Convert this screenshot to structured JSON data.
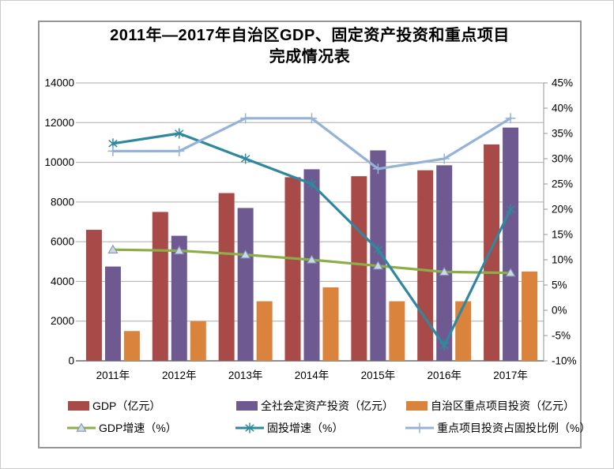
{
  "chart_data": {
    "type": "bar+line",
    "title": "2011年—2017年自治区GDP、固定资产投资和重点项目完成情况表",
    "title_lines": [
      "2011年—2017年自治区GDP、固定资产投资和重点项目",
      "完成情况表"
    ],
    "categories": [
      "2011年",
      "2012年",
      "2013年",
      "2014年",
      "2015年",
      "2016年",
      "2017年"
    ],
    "bar_series": [
      {
        "name": "GDP（亿元）",
        "color": "#A84A48",
        "axis": "left",
        "values": [
          6600,
          7500,
          8450,
          9250,
          9300,
          9600,
          10900
        ]
      },
      {
        "name": "全社会定资产投资（亿元）",
        "color": "#6E5A91",
        "axis": "left",
        "values": [
          4750,
          6300,
          7700,
          9650,
          10600,
          9850,
          11750
        ]
      },
      {
        "name": "自治区重点项目投资（亿元）",
        "color": "#D9833D",
        "axis": "left",
        "values": [
          1500,
          2000,
          3000,
          3700,
          3000,
          3000,
          4500
        ]
      }
    ],
    "line_series": [
      {
        "name": "GDP增速（%）",
        "color": "#8CAE46",
        "marker": "triangle",
        "marker_fill": "#CDD9E6",
        "marker_stroke": "#7F96B2",
        "axis": "right",
        "values": [
          12,
          11.8,
          11,
          10,
          8.8,
          7.6,
          7.4
        ]
      },
      {
        "name": "固投增速（%）",
        "color": "#31889E",
        "marker": "asterisk",
        "axis": "right",
        "values": [
          33,
          35,
          30,
          25,
          12,
          -7,
          20
        ]
      },
      {
        "name": "重点项目投资占固投比例（%）",
        "color": "#95B3D7",
        "marker": "plus",
        "axis": "right",
        "values": [
          31.5,
          31.5,
          38,
          38,
          28,
          30,
          38
        ]
      }
    ],
    "left_axis": {
      "min": 0,
      "max": 14000,
      "step": 2000,
      "ticks": [
        "0",
        "2000",
        "4000",
        "6000",
        "8000",
        "10000",
        "12000",
        "14000"
      ]
    },
    "right_axis": {
      "min": -10,
      "max": 45,
      "step": 5,
      "ticks": [
        "-10%",
        "-5%",
        "0%",
        "5%",
        "10%",
        "15%",
        "20%",
        "25%",
        "30%",
        "35%",
        "40%",
        "45%"
      ]
    },
    "grid": true,
    "legend_position": "bottom",
    "colors": {
      "grid": "#ABABAB",
      "baseline": "#808080",
      "right_axis_line": "#A6A6A6",
      "text": "#000000"
    }
  }
}
